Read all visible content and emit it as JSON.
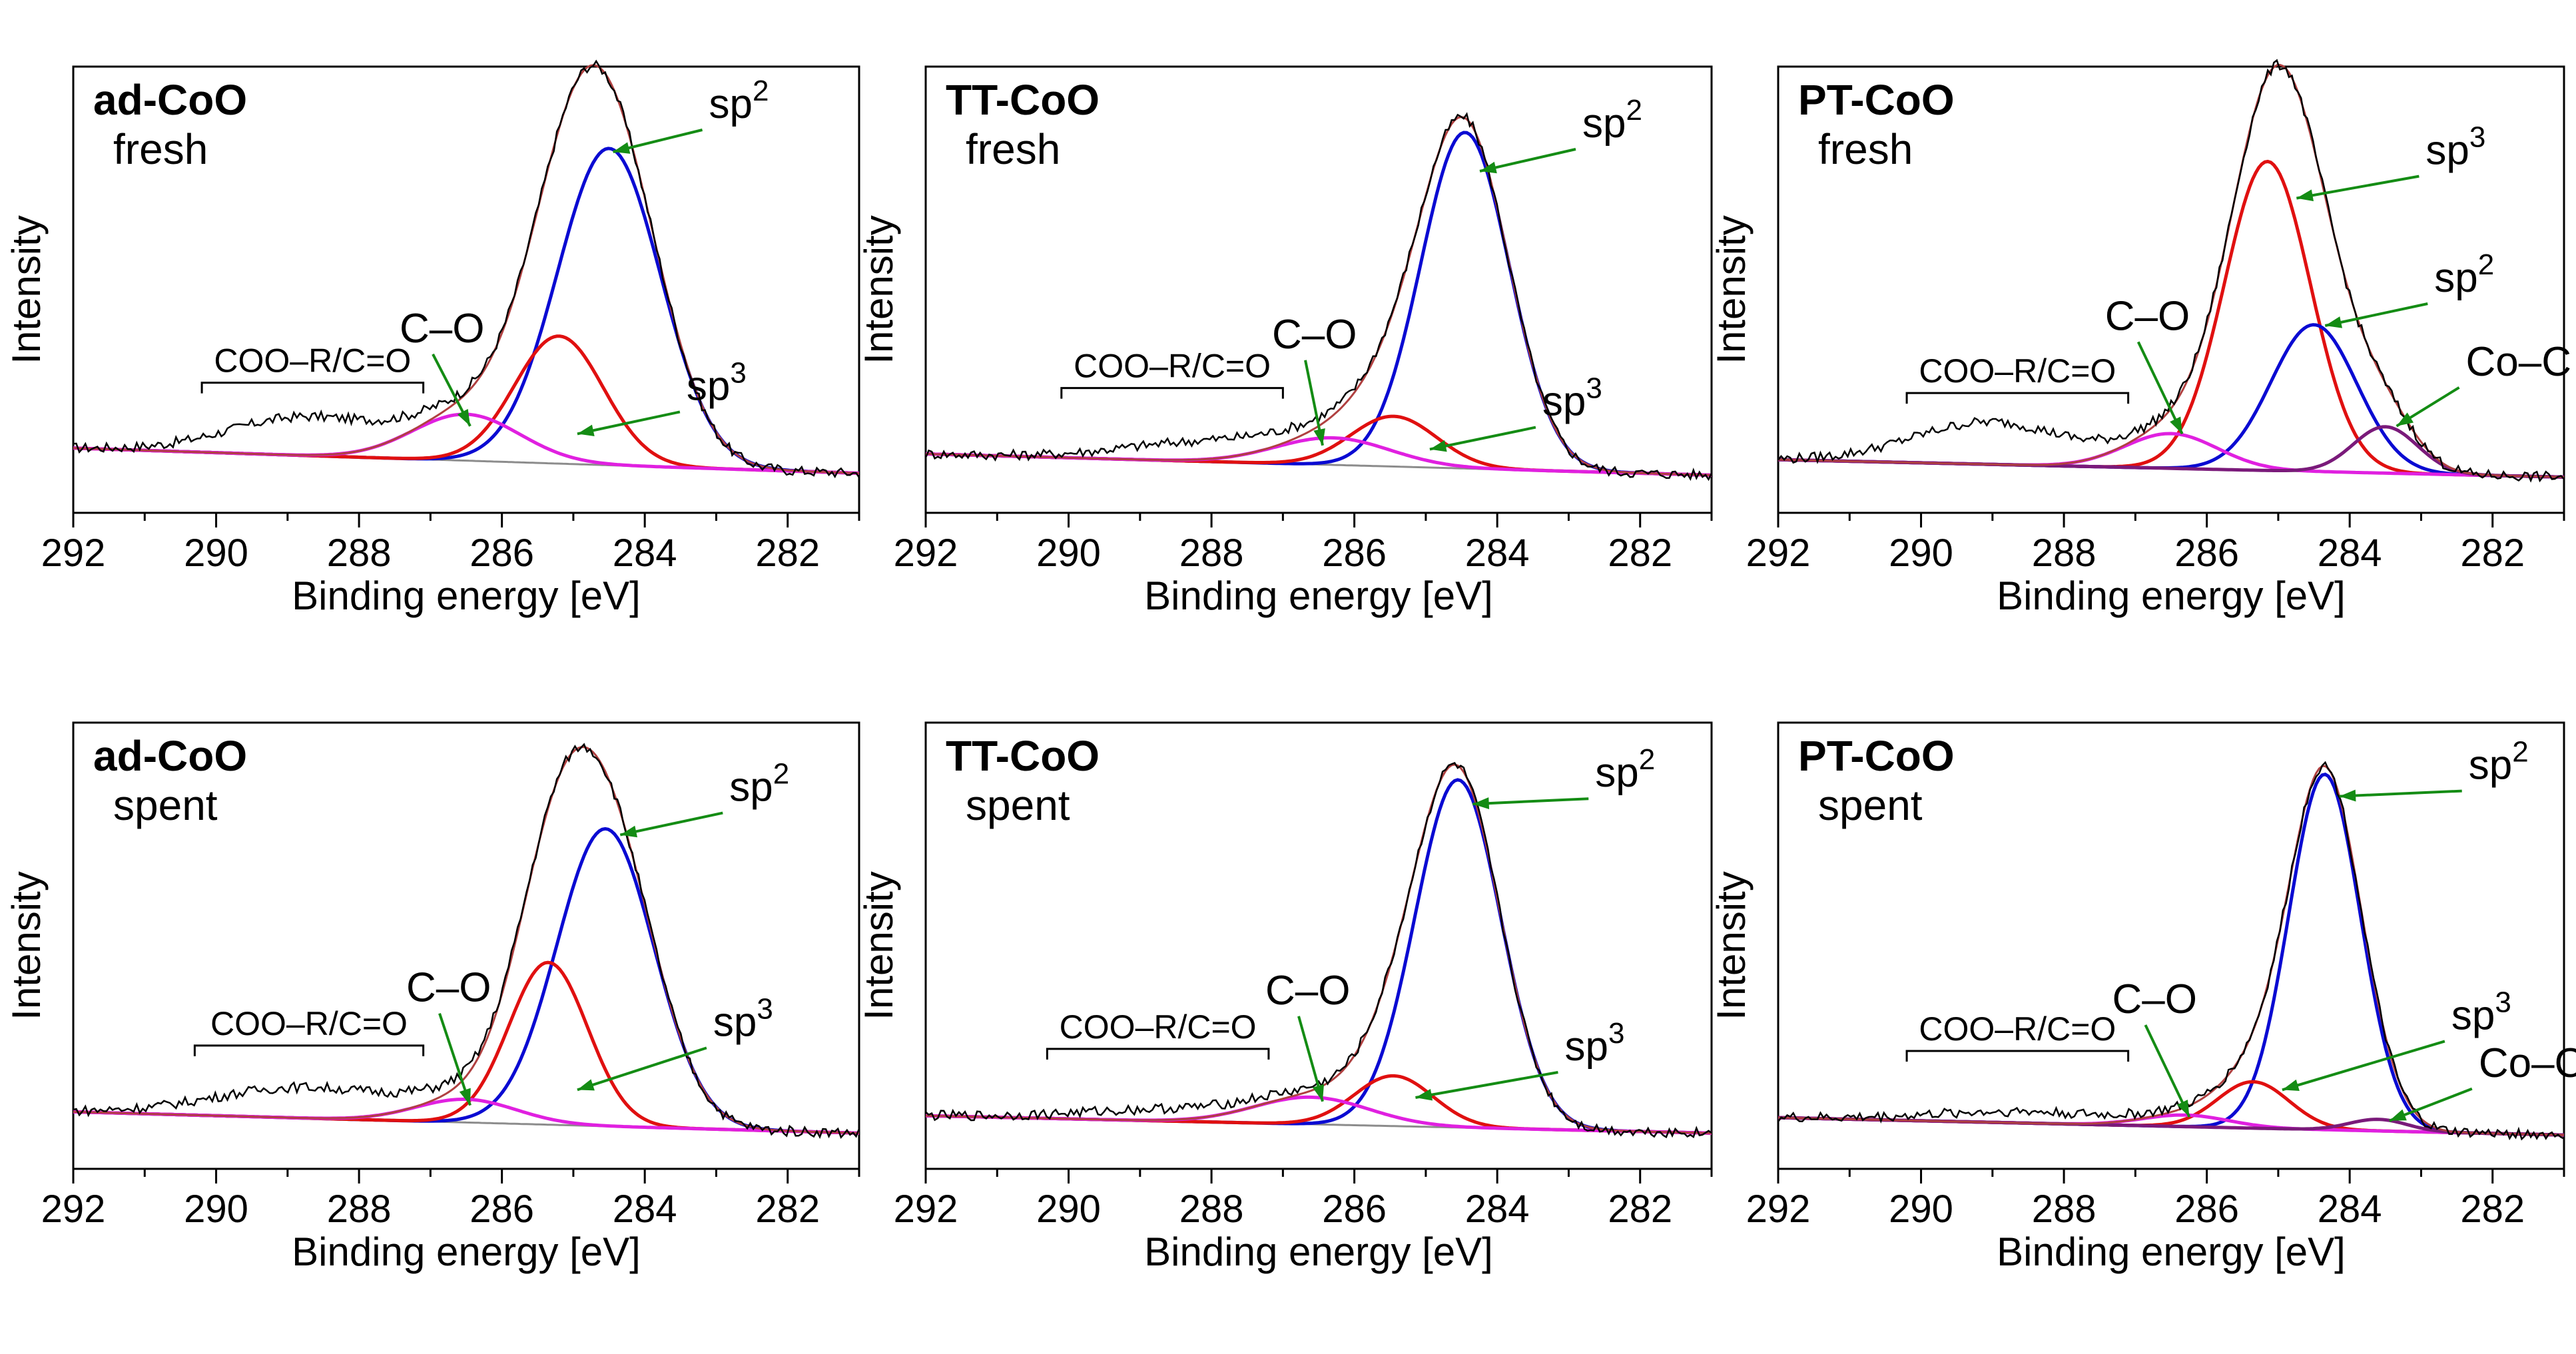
{
  "colors": {
    "raw": "#000000",
    "background": "#8c8c8c",
    "envelope": "#b04040",
    "sp2": "#0a0ad2",
    "sp3": "#e01010",
    "CO": "#e020e0",
    "CoC": "#7a1a7a",
    "arrow": "#148c14"
  },
  "chart_data": [
    {
      "type": "line",
      "title": "ad-CoO",
      "subtitle": "fresh",
      "xlabel": "Binding energy [eV]",
      "ylabel": "Intensity",
      "xlim": [
        292,
        281
      ],
      "ylim": [
        0,
        100
      ],
      "x_ticks": [
        "292",
        "290",
        "288",
        "286",
        "284",
        "282"
      ],
      "baseline": {
        "start": 9.0,
        "end": 2.5
      },
      "components": [
        {
          "name": "sp2",
          "center": 284.5,
          "height": 82,
          "sigma": 0.72
        },
        {
          "name": "sp3",
          "center": 285.2,
          "height": 33,
          "sigma": 0.62
        },
        {
          "name": "C–O",
          "center": 286.5,
          "height": 12,
          "sigma": 0.75
        }
      ],
      "raw_extra": [
        {
          "center": 288.7,
          "height": 10,
          "sigma": 1.1
        }
      ],
      "annotations": [
        {
          "text": "sp²",
          "x": 284.5,
          "y": 85
        },
        {
          "text": "sp³",
          "x": 285.0,
          "y": 12
        },
        {
          "text": "C–O",
          "x": 286.5,
          "y": 14
        }
      ],
      "group_label": {
        "text": "COO–R/C=O",
        "from": 290.2,
        "to": 287.1
      }
    },
    {
      "type": "line",
      "title": "TT-CoO",
      "subtitle": "fresh",
      "xlabel": "Binding energy [eV]",
      "ylabel": "Intensity",
      "xlim": [
        292,
        281
      ],
      "ylim": [
        0,
        100
      ],
      "x_ticks": [
        "292",
        "290",
        "288",
        "286",
        "284",
        "282"
      ],
      "baseline": {
        "start": 7.5,
        "end": 2.0
      },
      "components": [
        {
          "name": "sp2",
          "center": 284.45,
          "height": 87,
          "sigma": 0.62
        },
        {
          "name": "sp3",
          "center": 285.45,
          "height": 13,
          "sigma": 0.6
        },
        {
          "name": "C–O",
          "center": 286.3,
          "height": 7,
          "sigma": 0.8
        }
      ],
      "raw_extra": [
        {
          "center": 288.0,
          "height": 5,
          "sigma": 1.2
        }
      ],
      "annotations": [
        {
          "text": "sp²",
          "x": 284.3,
          "y": 80
        },
        {
          "text": "sp³",
          "x": 285.0,
          "y": 8
        },
        {
          "text": "C–O",
          "x": 286.5,
          "y": 9
        }
      ],
      "group_label": {
        "text": "COO–R/C=O",
        "from": 290.1,
        "to": 287.0
      }
    },
    {
      "type": "line",
      "title": "PT-CoO",
      "subtitle": "fresh",
      "xlabel": "Binding energy [eV]",
      "ylabel": "Intensity",
      "xlim": [
        292,
        281
      ],
      "ylim": [
        0,
        100
      ],
      "x_ticks": [
        "292",
        "290",
        "288",
        "286",
        "284",
        "282"
      ],
      "baseline": {
        "start": 6.0,
        "end": 1.5
      },
      "components": [
        {
          "name": "sp3",
          "center": 285.15,
          "height": 80,
          "sigma": 0.6
        },
        {
          "name": "sp2",
          "center": 284.5,
          "height": 38,
          "sigma": 0.6
        },
        {
          "name": "C–O",
          "center": 286.5,
          "height": 9,
          "sigma": 0.65
        },
        {
          "name": "Co–C",
          "center": 283.5,
          "height": 12,
          "sigma": 0.45
        }
      ],
      "raw_extra": [
        {
          "center": 289.0,
          "height": 11,
          "sigma": 1.1
        }
      ],
      "annotations": [
        {
          "text": "sp³",
          "x": 284.8,
          "y": 73
        },
        {
          "text": "sp²",
          "x": 284.4,
          "y": 40
        },
        {
          "text": "C–O",
          "x": 286.4,
          "y": 12
        },
        {
          "text": "Co–C",
          "x": 283.4,
          "y": 14
        }
      ],
      "group_label": {
        "text": "COO–R/C=O",
        "from": 290.2,
        "to": 287.1
      }
    },
    {
      "type": "line",
      "title": "ad-CoO",
      "subtitle": "spent",
      "xlabel": "Binding energy [eV]",
      "ylabel": "Intensity",
      "xlim": [
        292,
        281
      ],
      "ylim": [
        0,
        100
      ],
      "x_ticks": [
        "292",
        "290",
        "288",
        "286",
        "284",
        "282"
      ],
      "baseline": {
        "start": 7.0,
        "end": 1.5
      },
      "components": [
        {
          "name": "sp2",
          "center": 284.55,
          "height": 77,
          "sigma": 0.68
        },
        {
          "name": "sp3",
          "center": 285.35,
          "height": 42,
          "sigma": 0.55
        },
        {
          "name": "C–O",
          "center": 286.5,
          "height": 6,
          "sigma": 0.7
        }
      ],
      "raw_extra": [
        {
          "center": 288.7,
          "height": 8,
          "sigma": 1.3
        }
      ],
      "annotations": [
        {
          "text": "sp²",
          "x": 284.4,
          "y": 78
        },
        {
          "text": "sp³",
          "x": 285.0,
          "y": 12
        },
        {
          "text": "C–O",
          "x": 286.5,
          "y": 8
        }
      ],
      "group_label": {
        "text": "COO–R/C=O",
        "from": 290.3,
        "to": 287.1
      }
    },
    {
      "type": "line",
      "title": "TT-CoO",
      "subtitle": "spent",
      "xlabel": "Binding energy [eV]",
      "ylabel": "Intensity",
      "xlim": [
        292,
        281
      ],
      "ylim": [
        0,
        100
      ],
      "x_ticks": [
        "292",
        "290",
        "288",
        "286",
        "284",
        "282"
      ],
      "baseline": {
        "start": 6.0,
        "end": 1.5
      },
      "components": [
        {
          "name": "sp2",
          "center": 284.55,
          "height": 90,
          "sigma": 0.6
        },
        {
          "name": "sp3",
          "center": 285.45,
          "height": 13,
          "sigma": 0.55
        },
        {
          "name": "C–O",
          "center": 286.6,
          "height": 7,
          "sigma": 0.8
        }
      ],
      "raw_extra": [
        {
          "center": 288.5,
          "height": 3,
          "sigma": 1.3
        }
      ],
      "annotations": [
        {
          "text": "sp²",
          "x": 284.4,
          "y": 86
        },
        {
          "text": "sp³",
          "x": 285.2,
          "y": 10
        },
        {
          "text": "C–O",
          "x": 286.5,
          "y": 9
        }
      ],
      "group_label": {
        "text": "COO–R/C=O",
        "from": 290.3,
        "to": 287.2
      }
    },
    {
      "type": "line",
      "title": "PT-CoO",
      "subtitle": "spent",
      "xlabel": "Binding energy [eV]",
      "ylabel": "Intensity",
      "xlim": [
        292,
        281
      ],
      "ylim": [
        0,
        100
      ],
      "x_ticks": [
        "292",
        "290",
        "288",
        "286",
        "284",
        "282"
      ],
      "baseline": {
        "start": 5.5,
        "end": 1.0
      },
      "components": [
        {
          "name": "sp2",
          "center": 284.35,
          "height": 92,
          "sigma": 0.5
        },
        {
          "name": "sp3",
          "center": 285.35,
          "height": 12,
          "sigma": 0.5
        },
        {
          "name": "C–O",
          "center": 286.3,
          "height": 3,
          "sigma": 0.6
        },
        {
          "name": "Co–C",
          "center": 283.6,
          "height": 3,
          "sigma": 0.4
        }
      ],
      "raw_extra": [
        {
          "center": 288.5,
          "height": 3,
          "sigma": 1.3
        }
      ],
      "annotations": [
        {
          "text": "sp²",
          "x": 284.2,
          "y": 88
        },
        {
          "text": "sp³",
          "x": 285.0,
          "y": 12
        },
        {
          "text": "C–O",
          "x": 286.3,
          "y": 5
        },
        {
          "text": "Co–C",
          "x": 283.5,
          "y": 4
        }
      ],
      "group_label": {
        "text": "COO–R/C=O",
        "from": 290.2,
        "to": 287.1
      }
    }
  ]
}
